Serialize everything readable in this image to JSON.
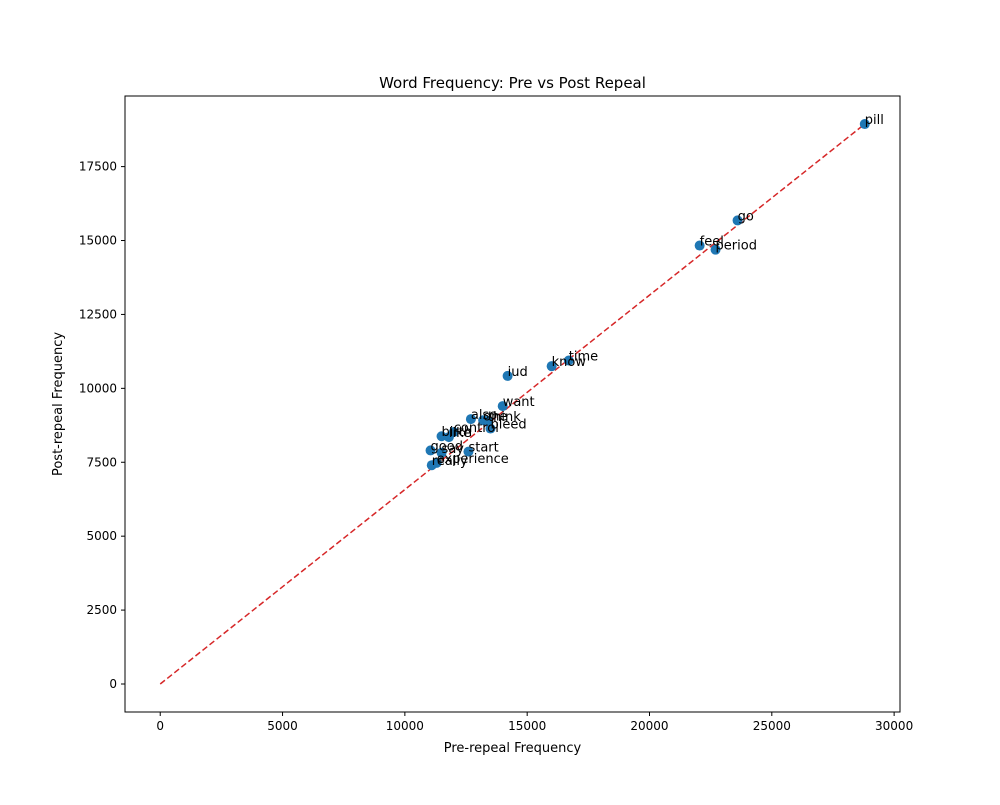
{
  "chart_data": {
    "type": "scatter",
    "title": "Word Frequency: Pre vs Post Repeal",
    "xlabel": "Pre-repeal Frequency",
    "ylabel": "Post-repeal Frequency",
    "xlim": [
      -1440,
      30240
    ],
    "ylim": [
      -947,
      19888
    ],
    "xticks": [
      0,
      5000,
      10000,
      15000,
      20000,
      25000,
      30000
    ],
    "yticks": [
      0,
      2500,
      5000,
      7500,
      10000,
      12500,
      15000,
      17500
    ],
    "grid": false,
    "reference_line": {
      "style": "dashed",
      "from": [
        0,
        0
      ],
      "to": [
        28800,
        18940
      ]
    },
    "points": [
      {
        "label": "pill",
        "x": 28800,
        "y": 18940
      },
      {
        "label": "go",
        "x": 23600,
        "y": 15680
      },
      {
        "label": "feel",
        "x": 22050,
        "y": 14830
      },
      {
        "label": "period",
        "x": 22700,
        "y": 14690
      },
      {
        "label": "time",
        "x": 16700,
        "y": 10940
      },
      {
        "label": "know",
        "x": 16000,
        "y": 10750
      },
      {
        "label": "iud",
        "x": 14200,
        "y": 10420
      },
      {
        "label": "want",
        "x": 14000,
        "y": 9400
      },
      {
        "label": "also",
        "x": 12700,
        "y": 8960
      },
      {
        "label": "one",
        "x": 13200,
        "y": 8920
      },
      {
        "label": "think",
        "x": 13400,
        "y": 8900
      },
      {
        "label": "bleed",
        "x": 13500,
        "y": 8640
      },
      {
        "label": "control",
        "x": 12000,
        "y": 8520
      },
      {
        "label": "birth",
        "x": 11500,
        "y": 8380
      },
      {
        "label": "like",
        "x": 11800,
        "y": 8350
      },
      {
        "label": "good",
        "x": 11050,
        "y": 7900
      },
      {
        "label": "say",
        "x": 11500,
        "y": 7820
      },
      {
        "label": "start",
        "x": 12600,
        "y": 7860
      },
      {
        "label": "experience",
        "x": 11300,
        "y": 7480
      },
      {
        "label": "really",
        "x": 11100,
        "y": 7400
      }
    ],
    "colors": {
      "points": "#1f77b4",
      "reference_line": "#d62728",
      "axes": "#000000"
    }
  }
}
